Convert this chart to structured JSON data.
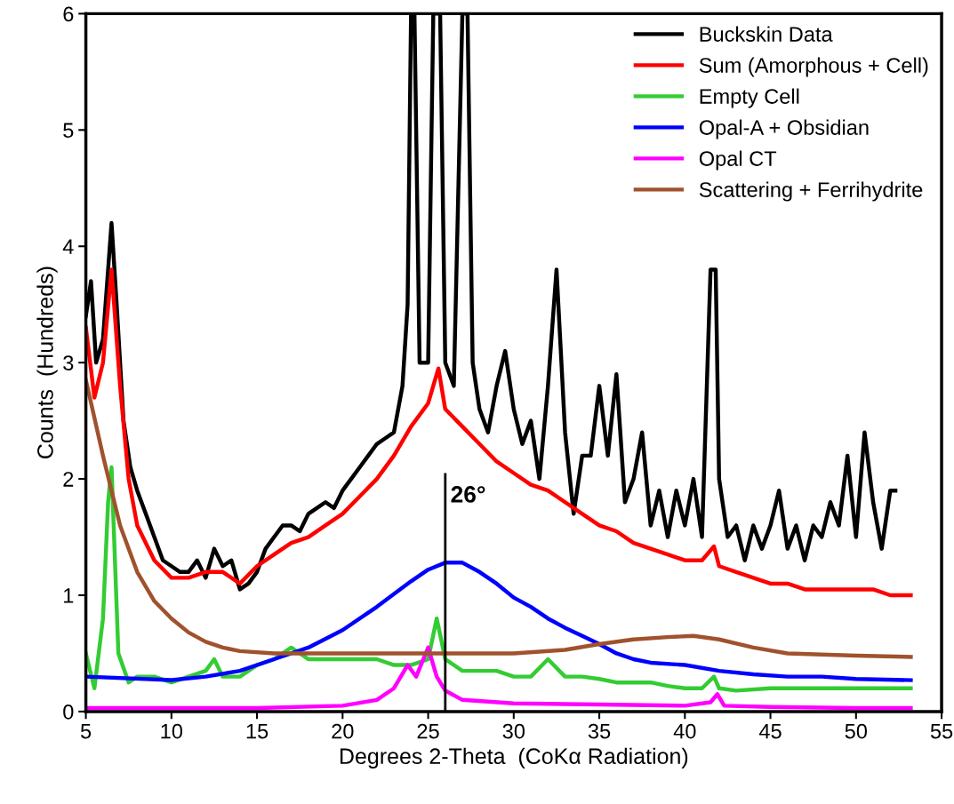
{
  "chart_data": {
    "type": "line",
    "xlabel": "Degrees 2-Theta  (CoKα Radiation)",
    "ylabel": "Counts  (Hundreds)",
    "xlim": [
      5,
      55
    ],
    "xticks": [
      5,
      10,
      15,
      20,
      25,
      30,
      35,
      40,
      45,
      50,
      55
    ],
    "ylim": [
      0,
      6
    ],
    "yticks": [
      0,
      1,
      2,
      3,
      4,
      5,
      6
    ],
    "grid": false,
    "legend": "top right",
    "marker": "none",
    "line_style": "solid",
    "ref_lines": [
      {
        "axis": "x",
        "value": 26,
        "label": "26°",
        "color": "#000000"
      }
    ],
    "series": [
      {
        "name": "Buckskin Data",
        "color": "#000000",
        "x": [
          5,
          5.3,
          5.6,
          6,
          6.3,
          6.5,
          6.8,
          7.2,
          7.6,
          8,
          8.5,
          9,
          9.5,
          10,
          10.5,
          11,
          11.5,
          12,
          12.5,
          13,
          13.5,
          14,
          14.5,
          15,
          15.5,
          16,
          16.5,
          17,
          17.5,
          18,
          18.5,
          19,
          19.5,
          20,
          20.5,
          21,
          21.5,
          22,
          22.5,
          23,
          23.5,
          23.8,
          24,
          24.2,
          24.5,
          25,
          25.3,
          25.7,
          26,
          26.5,
          27,
          27.3,
          27.6,
          28,
          28.5,
          29,
          29.5,
          30,
          30.5,
          31,
          31.5,
          32,
          32.5,
          33,
          33.5,
          34,
          34.5,
          35,
          35.5,
          36,
          36.5,
          37,
          37.5,
          38,
          38.5,
          39,
          39.5,
          40,
          40.5,
          41,
          41.5,
          41.8,
          42,
          42.5,
          43,
          43.5,
          44,
          44.5,
          45,
          45.5,
          46,
          46.5,
          47,
          47.5,
          48,
          48.5,
          49,
          49.5,
          50,
          50.5,
          51,
          51.5,
          52,
          52.3
        ],
        "values": [
          3.4,
          3.7,
          3.0,
          3.2,
          3.8,
          4.2,
          3.5,
          2.5,
          2.1,
          1.9,
          1.7,
          1.5,
          1.3,
          1.25,
          1.2,
          1.2,
          1.3,
          1.15,
          1.4,
          1.25,
          1.3,
          1.05,
          1.1,
          1.2,
          1.4,
          1.5,
          1.6,
          1.6,
          1.55,
          1.7,
          1.75,
          1.8,
          1.75,
          1.9,
          2.0,
          2.1,
          2.2,
          2.3,
          2.35,
          2.4,
          2.8,
          3.5,
          6,
          6,
          3.0,
          3.0,
          6,
          6,
          3.0,
          2.8,
          6,
          6,
          3.0,
          2.6,
          2.4,
          2.8,
          3.1,
          2.6,
          2.3,
          2.5,
          2.0,
          2.8,
          3.8,
          2.4,
          1.7,
          2.2,
          2.2,
          2.8,
          2.2,
          2.9,
          1.8,
          2.0,
          2.4,
          1.6,
          1.9,
          1.5,
          1.9,
          1.6,
          2.0,
          1.5,
          3.8,
          3.8,
          2.0,
          1.5,
          1.6,
          1.3,
          1.6,
          1.4,
          1.6,
          1.9,
          1.4,
          1.6,
          1.3,
          1.6,
          1.5,
          1.8,
          1.6,
          2.2,
          1.5,
          2.4,
          1.8,
          1.4,
          1.9,
          1.9
        ]
      },
      {
        "name": "Sum (Amorphous + Cell)",
        "color": "#ff0000",
        "x": [
          5,
          5.5,
          6,
          6.5,
          7,
          7.5,
          8,
          9,
          10,
          11,
          12,
          13,
          14,
          15,
          16,
          17,
          18,
          19,
          20,
          21,
          22,
          23,
          24,
          25,
          25.6,
          26,
          27,
          28,
          29,
          30,
          31,
          32,
          33,
          34,
          35,
          36,
          37,
          38,
          39,
          40,
          41,
          41.7,
          42,
          43,
          44,
          45,
          46,
          47,
          48,
          49,
          50,
          51,
          52,
          53.2
        ],
        "values": [
          3.3,
          2.7,
          3.0,
          3.8,
          2.8,
          2.0,
          1.6,
          1.3,
          1.15,
          1.15,
          1.2,
          1.2,
          1.1,
          1.25,
          1.35,
          1.45,
          1.5,
          1.6,
          1.7,
          1.85,
          2.0,
          2.2,
          2.45,
          2.65,
          2.95,
          2.6,
          2.45,
          2.3,
          2.15,
          2.05,
          1.95,
          1.9,
          1.8,
          1.7,
          1.6,
          1.55,
          1.45,
          1.4,
          1.35,
          1.3,
          1.3,
          1.42,
          1.25,
          1.2,
          1.15,
          1.1,
          1.1,
          1.05,
          1.05,
          1.05,
          1.05,
          1.05,
          1.0,
          1.0
        ]
      },
      {
        "name": "Empty Cell",
        "color": "#33cc33",
        "x": [
          5,
          5.5,
          6,
          6.3,
          6.5,
          6.9,
          7.5,
          8,
          9,
          10,
          11,
          12,
          12.5,
          13,
          14,
          15,
          16,
          17,
          18,
          19,
          20,
          21,
          22,
          23,
          24,
          25,
          25.5,
          26,
          27,
          28,
          29,
          30,
          31,
          32,
          33,
          34,
          35,
          36,
          37,
          38,
          39,
          40,
          41,
          41.7,
          42,
          43,
          45,
          47,
          49,
          51,
          53.2
        ],
        "values": [
          0.5,
          0.2,
          0.8,
          1.8,
          2.1,
          0.5,
          0.25,
          0.3,
          0.3,
          0.25,
          0.3,
          0.35,
          0.45,
          0.3,
          0.3,
          0.4,
          0.45,
          0.55,
          0.45,
          0.45,
          0.45,
          0.45,
          0.45,
          0.4,
          0.4,
          0.45,
          0.8,
          0.45,
          0.35,
          0.35,
          0.35,
          0.3,
          0.3,
          0.45,
          0.3,
          0.3,
          0.28,
          0.25,
          0.25,
          0.25,
          0.22,
          0.2,
          0.2,
          0.3,
          0.2,
          0.18,
          0.2,
          0.2,
          0.2,
          0.2,
          0.2
        ]
      },
      {
        "name": "Opal-A + Obsidian",
        "color": "#0000ff",
        "x": [
          5,
          10,
          12,
          14,
          16,
          18,
          20,
          22,
          24,
          25,
          26,
          27,
          28,
          29,
          30,
          31,
          32,
          33,
          34,
          35,
          36,
          37,
          38,
          40,
          42,
          44,
          46,
          48,
          50,
          53.2
        ],
        "values": [
          0.3,
          0.27,
          0.3,
          0.35,
          0.45,
          0.55,
          0.7,
          0.9,
          1.12,
          1.22,
          1.28,
          1.28,
          1.2,
          1.1,
          0.98,
          0.9,
          0.8,
          0.72,
          0.65,
          0.58,
          0.5,
          0.45,
          0.42,
          0.4,
          0.35,
          0.32,
          0.3,
          0.3,
          0.28,
          0.27
        ]
      },
      {
        "name": "Opal CT",
        "color": "#ff00ff",
        "x": [
          5,
          15,
          20,
          22,
          23,
          23.8,
          24.3,
          25,
          25.5,
          26,
          27,
          30,
          35,
          40,
          41.5,
          41.9,
          42.3,
          45,
          50,
          53.2
        ],
        "values": [
          0.03,
          0.03,
          0.05,
          0.1,
          0.2,
          0.4,
          0.3,
          0.55,
          0.3,
          0.18,
          0.1,
          0.07,
          0.06,
          0.05,
          0.08,
          0.15,
          0.05,
          0.04,
          0.03,
          0.03
        ]
      },
      {
        "name": "Scattering + Ferrihydrite",
        "color": "#a0522d",
        "x": [
          5,
          6,
          7,
          8,
          9,
          10,
          11,
          12,
          13,
          14,
          16,
          20,
          25,
          30,
          33,
          35,
          37,
          39,
          40.5,
          42,
          44,
          46,
          50,
          53.2
        ],
        "values": [
          2.85,
          2.2,
          1.6,
          1.2,
          0.95,
          0.8,
          0.68,
          0.6,
          0.55,
          0.52,
          0.5,
          0.5,
          0.5,
          0.5,
          0.53,
          0.58,
          0.62,
          0.64,
          0.65,
          0.62,
          0.55,
          0.5,
          0.48,
          0.47
        ]
      }
    ]
  }
}
